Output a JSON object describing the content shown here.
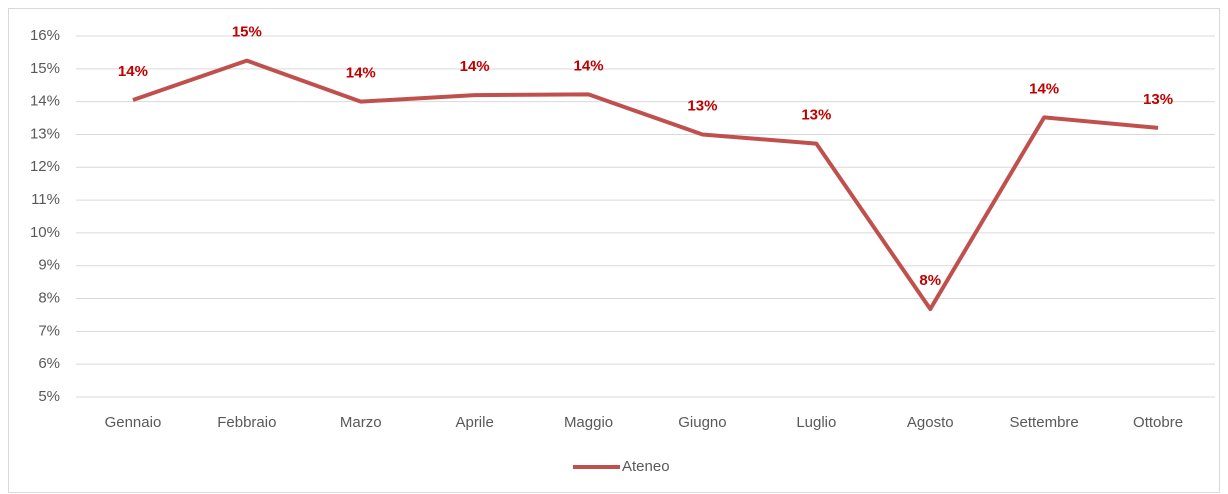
{
  "chart_data": {
    "type": "line",
    "categories": [
      "Gennaio",
      "Febbraio",
      "Marzo",
      "Aprile",
      "Maggio",
      "Giugno",
      "Luglio",
      "Agosto",
      "Settembre",
      "Ottobre"
    ],
    "series": [
      {
        "name": "Ateneo",
        "color": "#c0504d",
        "values": [
          14.05,
          15.25,
          14.0,
          14.2,
          14.22,
          13.0,
          12.72,
          7.68,
          13.52,
          13.2
        ],
        "value_labels": [
          "14%",
          "15%",
          "14%",
          "14%",
          "14%",
          "13%",
          "13%",
          "8%",
          "14%",
          "13%"
        ]
      }
    ],
    "ylim": [
      5,
      16
    ],
    "yticks": [
      {
        "value": 5,
        "label": "5%"
      },
      {
        "value": 6,
        "label": "6%"
      },
      {
        "value": 7,
        "label": "7%"
      },
      {
        "value": 8,
        "label": "8%"
      },
      {
        "value": 9,
        "label": "9%"
      },
      {
        "value": 10,
        "label": "10%"
      },
      {
        "value": 11,
        "label": "11%"
      },
      {
        "value": 12,
        "label": "12%"
      },
      {
        "value": 13,
        "label": "13%"
      },
      {
        "value": 14,
        "label": "14%"
      },
      {
        "value": 15,
        "label": "15%"
      },
      {
        "value": 16,
        "label": "16%"
      }
    ],
    "grid": true,
    "legend": "bottom",
    "value_label_color": "#c00000"
  }
}
